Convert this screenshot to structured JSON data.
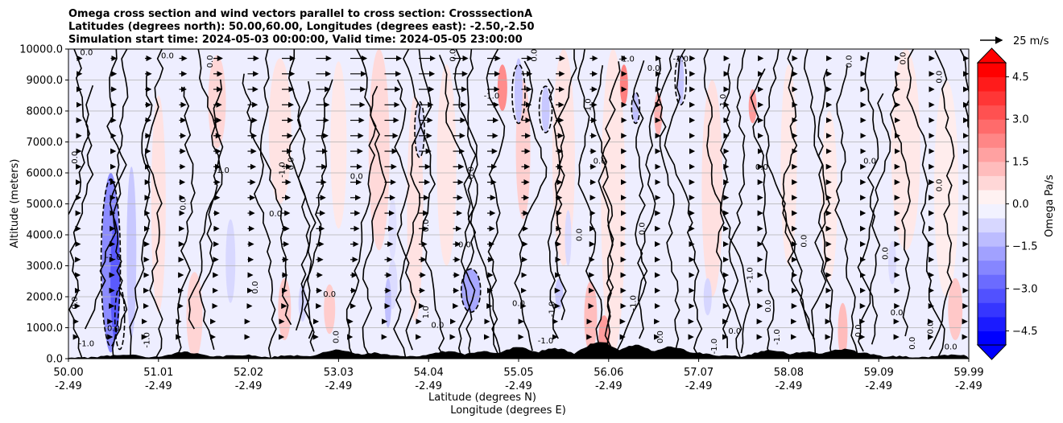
{
  "chart_data": {
    "type": "contour",
    "title_lines": [
      "Omega cross section and wind vectors parallel to cross section: CrosssectionA",
      "Latitudes (degrees north): 50.00,60.00, Longitudes (degrees east): -2.50,-2.50",
      "Simulation start time: 2024-05-03 00:00:00, Valid time: 2024-05-05 23:00:00"
    ],
    "ylabel": "Altitude (meters)",
    "xlabel_lat": "Latitude (degrees N)",
    "xlabel_lon": "Longitude (degrees E)",
    "ylim": [
      0,
      10000
    ],
    "y_ticks": [
      {
        "value": 0,
        "label": "0.0"
      },
      {
        "value": 1000,
        "label": "1000.0"
      },
      {
        "value": 2000,
        "label": "2000.0"
      },
      {
        "value": 3000,
        "label": "3000.0"
      },
      {
        "value": 4000,
        "label": "4000.0"
      },
      {
        "value": 5000,
        "label": "5000.0"
      },
      {
        "value": 6000,
        "label": "6000.0"
      },
      {
        "value": 7000,
        "label": "7000.0"
      },
      {
        "value": 8000,
        "label": "8000.0"
      },
      {
        "value": 9000,
        "label": "9000.0"
      },
      {
        "value": 10000,
        "label": "10000.0"
      }
    ],
    "xlim": [
      50.0,
      59.99
    ],
    "x_ticks": [
      {
        "lat": "50.00",
        "lon": "-2.49"
      },
      {
        "lat": "51.01",
        "lon": "-2.49"
      },
      {
        "lat": "52.02",
        "lon": "-2.49"
      },
      {
        "lat": "53.03",
        "lon": "-2.49"
      },
      {
        "lat": "54.04",
        "lon": "-2.49"
      },
      {
        "lat": "55.05",
        "lon": "-2.49"
      },
      {
        "lat": "56.06",
        "lon": "-2.49"
      },
      {
        "lat": "57.07",
        "lon": "-2.49"
      },
      {
        "lat": "58.08",
        "lon": "-2.49"
      },
      {
        "lat": "59.09",
        "lon": "-2.49"
      },
      {
        "lat": "59.99",
        "lon": "-2.49"
      }
    ],
    "colorbar": {
      "label": "Omega Pa/s",
      "range": [
        -5,
        5
      ],
      "ticks": [
        "4.5",
        "3.0",
        "1.5",
        "0.0",
        "−1.5",
        "−3.0",
        "−4.5"
      ],
      "tick_values": [
        4.5,
        3.0,
        1.5,
        0.0,
        -1.5,
        -3.0,
        -4.5
      ]
    },
    "quiver_key": {
      "label": "25 m/s",
      "value": 25
    },
    "contour_labels": [
      "0.0",
      "-1.0",
      "1.0"
    ],
    "colors": {
      "negative": "#0000ff",
      "positive": "#ff0000",
      "terrain": "#000000",
      "grid": "#b0b0b0"
    }
  }
}
